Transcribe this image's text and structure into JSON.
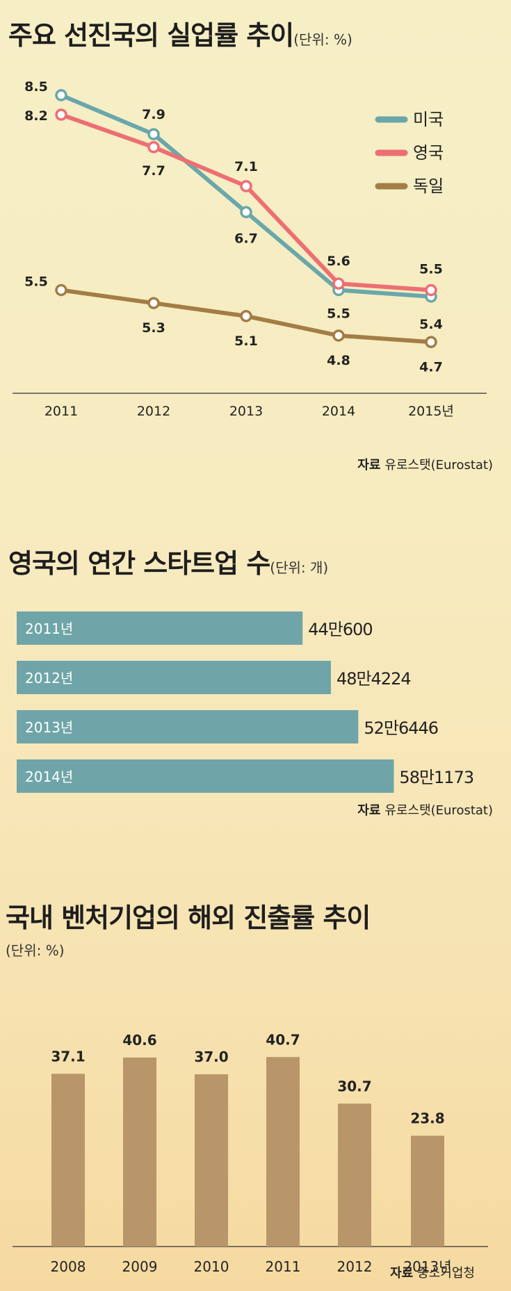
{
  "chart_data": [
    {
      "type": "line",
      "title": "주요 선진국의 실업률 추이",
      "unit": "(단위: %)",
      "categories": [
        "2011",
        "2012",
        "2013",
        "2014",
        "2015년"
      ],
      "series": [
        {
          "name": "미국",
          "color": "#6aa7aa",
          "values": [
            8.5,
            7.9,
            6.7,
            5.5,
            5.4
          ],
          "labels": [
            "8.5",
            "7.9",
            "6.7",
            "5.5",
            "5.4"
          ]
        },
        {
          "name": "영국",
          "color": "#ec6f73",
          "values": [
            8.2,
            7.7,
            7.1,
            5.6,
            5.5
          ],
          "labels": [
            "8.2",
            "7.7",
            "7.1",
            "5.6",
            "5.5"
          ]
        },
        {
          "name": "독일",
          "color": "#a27d45",
          "values": [
            5.5,
            5.3,
            5.1,
            4.8,
            4.7
          ],
          "labels": [
            "5.5",
            "5.3",
            "5.1",
            "4.8",
            "4.7"
          ]
        }
      ],
      "legend": "top-right",
      "source_label": "자료",
      "source": "유로스탯(Eurostat)"
    },
    {
      "type": "bar",
      "orientation": "horizontal",
      "title": "영국의 연간 스타트업 수",
      "unit": "(단위: 개)",
      "categories": [
        "2011년",
        "2012년",
        "2013년",
        "2014년"
      ],
      "values": [
        440600,
        484224,
        526446,
        581173
      ],
      "labels": [
        "44만600",
        "48만4224",
        "52만6446",
        "58만1173"
      ],
      "color": "#6fa5a8",
      "source_label": "자료",
      "source": "유로스탯(Eurostat)"
    },
    {
      "type": "bar",
      "title": "국내 벤처기업의 해외 진출률 추이",
      "unit": "(단위: %)",
      "categories": [
        "2008",
        "2009",
        "2010",
        "2011",
        "2012",
        "2013년"
      ],
      "values": [
        37.1,
        40.6,
        37.0,
        40.7,
        30.7,
        23.8
      ],
      "labels": [
        "37.1",
        "40.6",
        "37.0",
        "40.7",
        "30.7",
        "23.8"
      ],
      "color": "#b9956a",
      "source_label": "자료",
      "source": "중소기업청"
    }
  ]
}
